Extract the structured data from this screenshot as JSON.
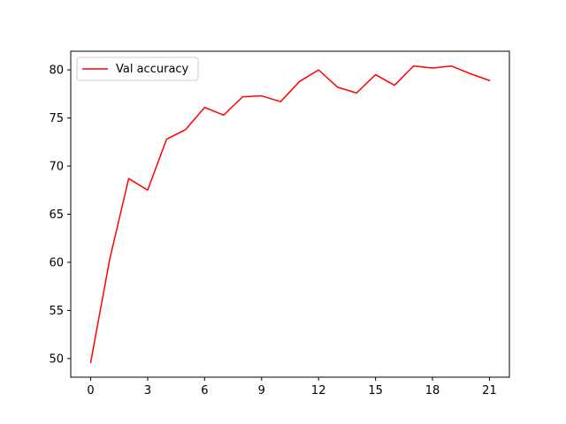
{
  "chart_data": {
    "type": "line",
    "title": "",
    "xlabel": "",
    "ylabel": "",
    "x": [
      0,
      1,
      2,
      3,
      4,
      5,
      6,
      7,
      8,
      9,
      10,
      11,
      12,
      13,
      14,
      15,
      16,
      17,
      18,
      19,
      20,
      21
    ],
    "series": [
      {
        "name": "Val accuracy",
        "color": "#ff0000",
        "values": [
          49.6,
          60.3,
          68.7,
          67.5,
          72.8,
          73.8,
          76.1,
          75.3,
          77.2,
          77.3,
          76.7,
          78.8,
          80.0,
          78.2,
          77.6,
          79.5,
          78.4,
          80.4,
          80.2,
          80.4,
          79.6,
          78.9
        ]
      }
    ],
    "xticks": [
      0,
      3,
      6,
      9,
      12,
      15,
      18,
      21
    ],
    "yticks": [
      50,
      55,
      60,
      65,
      70,
      75,
      80
    ],
    "xlim": [
      -1.05,
      22.05
    ],
    "ylim": [
      48.06,
      81.94
    ],
    "grid": false,
    "legend_position": "upper-left"
  }
}
